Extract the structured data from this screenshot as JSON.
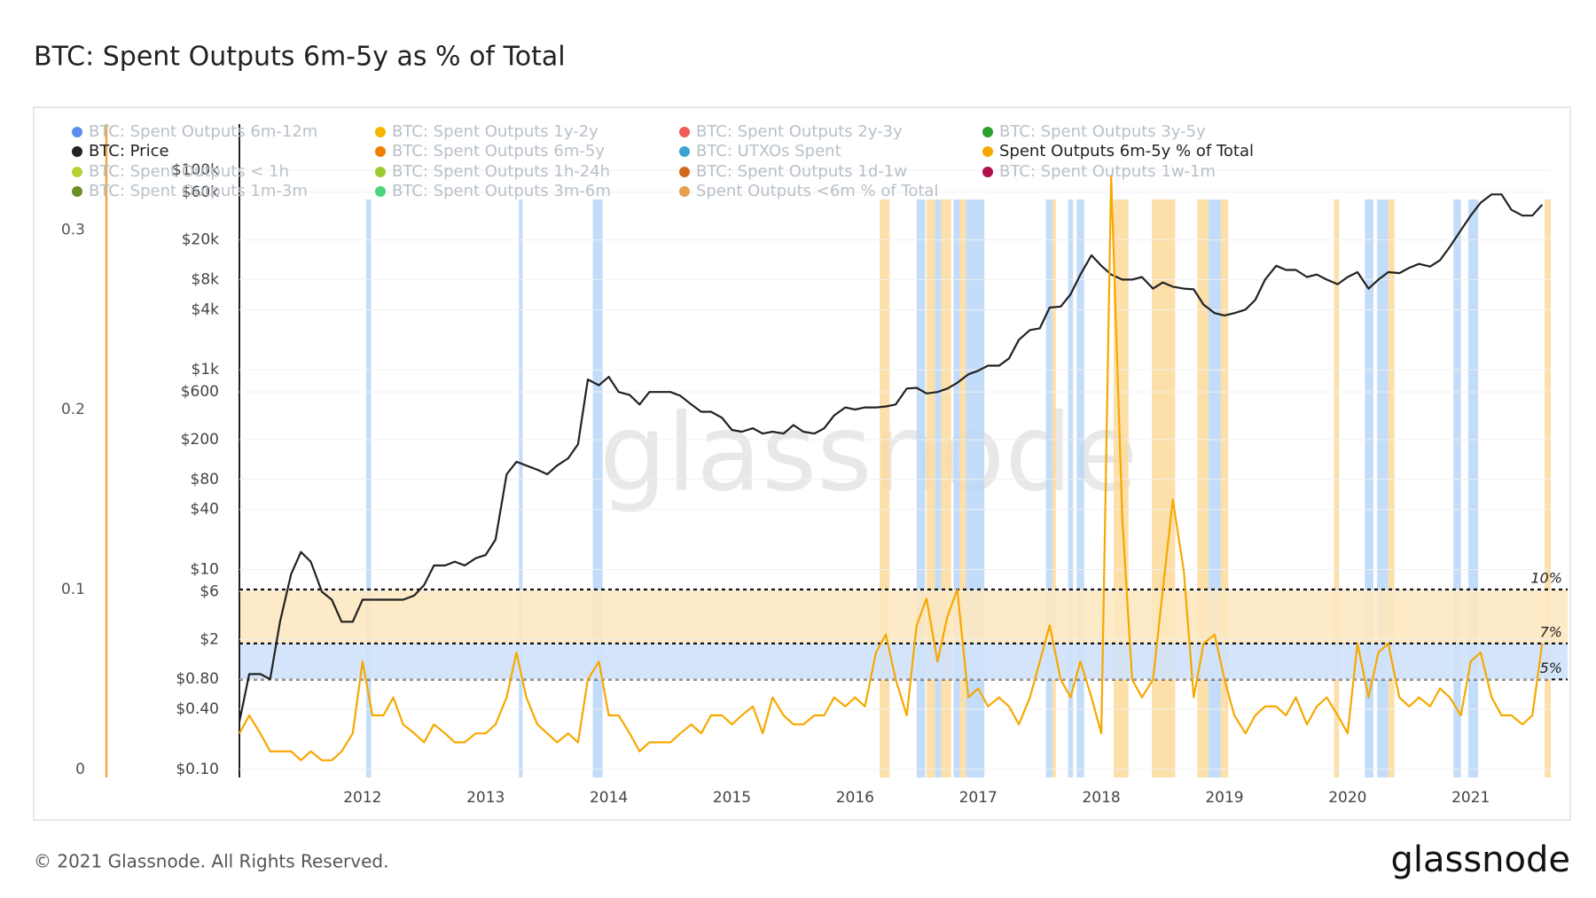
{
  "chart_data": {
    "type": "line",
    "title": "BTC: Spent Outputs 6m-5y as % of Total",
    "watermark": "glassnode",
    "footer": "© 2021 Glassnode. All Rights Reserved.",
    "logo": "glassnode",
    "xlim": [
      2011,
      2021.65
    ],
    "xticks": [
      2012,
      2013,
      2014,
      2015,
      2016,
      2017,
      2018,
      2019,
      2020,
      2021
    ],
    "ylim": [
      -0.0045,
      0.348
    ],
    "yticks": [
      0,
      0.1,
      0.2,
      0.3
    ],
    "y2lim": [
      0.083,
      184000
    ],
    "y2log": true,
    "y2ticks": [
      {
        "value": 100000,
        "label": "$100k"
      },
      {
        "value": 60000,
        "label": "$60k"
      },
      {
        "value": 20000,
        "label": "$20k"
      },
      {
        "value": 8000,
        "label": "$8k"
      },
      {
        "value": 4000,
        "label": "$4k"
      },
      {
        "value": 1000,
        "label": "$1k"
      },
      {
        "value": 600,
        "label": "$600"
      },
      {
        "value": 200,
        "label": "$200"
      },
      {
        "value": 80,
        "label": "$80"
      },
      {
        "value": 40,
        "label": "$40"
      },
      {
        "value": 10,
        "label": "$10"
      },
      {
        "value": 6,
        "label": "$6"
      },
      {
        "value": 2,
        "label": "$2"
      },
      {
        "value": 0.8,
        "label": "$0.80"
      },
      {
        "value": 0.4,
        "label": "$0.40"
      },
      {
        "value": 0.1,
        "label": "$0.10"
      }
    ],
    "zones": [
      {
        "value": 0.1,
        "label": "10%"
      },
      {
        "value": 0.07,
        "label": "7%"
      },
      {
        "value": 0.05,
        "label": "5%"
      }
    ],
    "zone_colors": [
      "#fde8c0",
      "#cfe2fb"
    ],
    "bands": [
      {
        "range": [
          2012.03,
          2012.07
        ],
        "color": "#b9d6f8"
      },
      {
        "range": [
          2013.27,
          2013.3
        ],
        "color": "#b9d6f8"
      },
      {
        "range": [
          2013.87,
          2013.95
        ],
        "color": "#b9d6f8"
      },
      {
        "range": [
          2016.2,
          2016.28
        ],
        "color": "#fcd99a"
      },
      {
        "range": [
          2016.5,
          2016.57
        ],
        "color": "#b9d6f8"
      },
      {
        "range": [
          2016.58,
          2016.65
        ],
        "color": "#fcd99a"
      },
      {
        "range": [
          2016.65,
          2016.7
        ],
        "color": "#b9d6f8"
      },
      {
        "range": [
          2016.7,
          2016.78
        ],
        "color": "#fcd99a"
      },
      {
        "range": [
          2016.8,
          2016.85
        ],
        "color": "#b9d6f8"
      },
      {
        "range": [
          2016.85,
          2016.9
        ],
        "color": "#fcd99a"
      },
      {
        "range": [
          2016.9,
          2017.05
        ],
        "color": "#b9d6f8"
      },
      {
        "range": [
          2017.55,
          2017.6
        ],
        "color": "#b9d6f8"
      },
      {
        "range": [
          2017.6,
          2017.63
        ],
        "color": "#fcd99a"
      },
      {
        "range": [
          2017.73,
          2017.77
        ],
        "color": "#b9d6f8"
      },
      {
        "range": [
          2017.8,
          2017.86
        ],
        "color": "#b9d6f8"
      },
      {
        "range": [
          2018.1,
          2018.22
        ],
        "color": "#fcd99a"
      },
      {
        "range": [
          2018.41,
          2018.6
        ],
        "color": "#fcd99a"
      },
      {
        "range": [
          2018.78,
          2018.87
        ],
        "color": "#fcd99a"
      },
      {
        "range": [
          2018.87,
          2018.97
        ],
        "color": "#b9d6f8"
      },
      {
        "range": [
          2018.97,
          2019.03
        ],
        "color": "#fcd99a"
      },
      {
        "range": [
          2019.89,
          2019.93
        ],
        "color": "#fcd99a"
      },
      {
        "range": [
          2020.14,
          2020.21
        ],
        "color": "#b9d6f8"
      },
      {
        "range": [
          2020.24,
          2020.33
        ],
        "color": "#b9d6f8"
      },
      {
        "range": [
          2020.33,
          2020.38
        ],
        "color": "#fcd99a"
      },
      {
        "range": [
          2020.86,
          2020.92
        ],
        "color": "#b9d6f8"
      },
      {
        "range": [
          2020.98,
          2021.06
        ],
        "color": "#b9d6f8"
      },
      {
        "range": [
          2021.6,
          2021.65
        ],
        "color": "#fcd99a"
      }
    ],
    "x": [
      2011,
      2011.08,
      2011.17,
      2011.25,
      2011.33,
      2011.42,
      2011.5,
      2011.58,
      2011.67,
      2011.75,
      2011.83,
      2011.92,
      2012,
      2012.08,
      2012.17,
      2012.25,
      2012.33,
      2012.42,
      2012.5,
      2012.58,
      2012.67,
      2012.75,
      2012.83,
      2012.92,
      2013,
      2013.08,
      2013.17,
      2013.25,
      2013.33,
      2013.42,
      2013.5,
      2013.58,
      2013.67,
      2013.75,
      2013.83,
      2013.92,
      2014,
      2014.08,
      2014.17,
      2014.25,
      2014.33,
      2014.42,
      2014.5,
      2014.58,
      2014.67,
      2014.75,
      2014.83,
      2014.92,
      2015,
      2015.08,
      2015.17,
      2015.25,
      2015.33,
      2015.42,
      2015.5,
      2015.58,
      2015.67,
      2015.75,
      2015.83,
      2015.92,
      2016,
      2016.08,
      2016.17,
      2016.25,
      2016.33,
      2016.42,
      2016.5,
      2016.58,
      2016.67,
      2016.75,
      2016.83,
      2016.92,
      2017,
      2017.08,
      2017.17,
      2017.25,
      2017.33,
      2017.42,
      2017.5,
      2017.58,
      2017.67,
      2017.75,
      2017.83,
      2017.92,
      2018,
      2018.08,
      2018.17,
      2018.25,
      2018.33,
      2018.42,
      2018.5,
      2018.58,
      2018.67,
      2018.75,
      2018.83,
      2018.92,
      2019,
      2019.08,
      2019.17,
      2019.25,
      2019.33,
      2019.42,
      2019.5,
      2019.58,
      2019.67,
      2019.75,
      2019.83,
      2019.92,
      2020,
      2020.08,
      2020.17,
      2020.25,
      2020.33,
      2020.42,
      2020.5,
      2020.58,
      2020.67,
      2020.75,
      2020.83,
      2020.92,
      2021,
      2021.08,
      2021.17,
      2021.25,
      2021.33,
      2021.42,
      2021.5,
      2021.58
    ],
    "series": [
      {
        "name": "BTC: Spent Outputs 6m-12m",
        "color": "#5b8def",
        "visible": false
      },
      {
        "name": "BTC: Spent Outputs 1y-2y",
        "color": "#f7b500",
        "visible": false
      },
      {
        "name": "BTC: Spent Outputs 2y-3y",
        "color": "#ef5a5a",
        "visible": false
      },
      {
        "name": "BTC: Spent Outputs 3y-5y",
        "color": "#2ca02c",
        "visible": false
      },
      {
        "name": "BTC: Price",
        "color": "#222222",
        "visible": true,
        "axis": "y2",
        "values": [
          0.3,
          0.9,
          0.9,
          0.8,
          3,
          9,
          15,
          12,
          6,
          5,
          3,
          3,
          5,
          5,
          5,
          5,
          5,
          5.5,
          7,
          11,
          11,
          12,
          11,
          13,
          14,
          20,
          90,
          120,
          110,
          100,
          90,
          110,
          130,
          180,
          800,
          700,
          850,
          600,
          560,
          450,
          600,
          600,
          600,
          550,
          450,
          380,
          380,
          330,
          250,
          240,
          260,
          230,
          240,
          230,
          280,
          240,
          230,
          260,
          350,
          420,
          400,
          420,
          420,
          430,
          450,
          650,
          660,
          580,
          600,
          650,
          740,
          900,
          980,
          1100,
          1100,
          1300,
          2000,
          2500,
          2600,
          4200,
          4300,
          5700,
          9000,
          14000,
          11000,
          9000,
          8000,
          8000,
          8500,
          6500,
          7500,
          6800,
          6500,
          6400,
          4500,
          3700,
          3500,
          3700,
          4000,
          5000,
          8000,
          11000,
          10000,
          10000,
          8500,
          9000,
          8000,
          7200,
          8500,
          9500,
          6500,
          8000,
          9500,
          9300,
          10500,
          11500,
          10800,
          12500,
          17000,
          25000,
          35000,
          47000,
          57000,
          57000,
          40000,
          35000,
          35000,
          45000
        ]
      },
      {
        "name": "BTC: Spent Outputs 6m-5y",
        "color": "#f07f00",
        "visible": false
      },
      {
        "name": "BTC: UTXOs Spent",
        "color": "#3ba3d0",
        "visible": false
      },
      {
        "name": "Spent Outputs 6m-5y % of Total",
        "color": "#f7a800",
        "visible": true,
        "values": [
          0.02,
          0.03,
          0.02,
          0.01,
          0.01,
          0.01,
          0.005,
          0.01,
          0.005,
          0.005,
          0.01,
          0.02,
          0.06,
          0.03,
          0.03,
          0.04,
          0.025,
          0.02,
          0.015,
          0.025,
          0.02,
          0.015,
          0.015,
          0.02,
          0.02,
          0.025,
          0.04,
          0.065,
          0.04,
          0.025,
          0.02,
          0.015,
          0.02,
          0.015,
          0.05,
          0.06,
          0.03,
          0.03,
          0.02,
          0.01,
          0.015,
          0.015,
          0.015,
          0.02,
          0.025,
          0.02,
          0.03,
          0.03,
          0.025,
          0.03,
          0.035,
          0.02,
          0.04,
          0.03,
          0.025,
          0.025,
          0.03,
          0.03,
          0.04,
          0.035,
          0.04,
          0.035,
          0.065,
          0.075,
          0.05,
          0.03,
          0.08,
          0.095,
          0.06,
          0.085,
          0.1,
          0.04,
          0.045,
          0.035,
          0.04,
          0.035,
          0.025,
          0.04,
          0.06,
          0.08,
          0.05,
          0.04,
          0.06,
          0.04,
          0.02,
          0.33,
          0.14,
          0.05,
          0.04,
          0.05,
          0.1,
          0.15,
          0.11,
          0.04,
          0.07,
          0.075,
          0.05,
          0.03,
          0.02,
          0.03,
          0.035,
          0.035,
          0.03,
          0.04,
          0.025,
          0.035,
          0.04,
          0.03,
          0.02,
          0.07,
          0.04,
          0.065,
          0.07,
          0.04,
          0.035,
          0.04,
          0.035,
          0.045,
          0.04,
          0.03,
          0.06,
          0.065,
          0.04,
          0.03,
          0.03,
          0.025,
          0.03,
          0.07
        ]
      },
      {
        "name": "BTC: Spent Outputs < 1h",
        "color": "#b5d334",
        "visible": false
      },
      {
        "name": "BTC: Spent Outputs 1h-24h",
        "color": "#9acd32",
        "visible": false
      },
      {
        "name": "BTC: Spent Outputs 1d-1w",
        "color": "#d2691e",
        "visible": false
      },
      {
        "name": "BTC: Spent Outputs 1w-1m",
        "color": "#b0104a",
        "visible": false
      },
      {
        "name": "BTC: Spent Outputs 1m-3m",
        "color": "#6b8e23",
        "visible": false
      },
      {
        "name": "BTC: Spent Outputs 3m-6m",
        "color": "#4cd47a",
        "visible": false
      },
      {
        "name": "Spent Outputs <6m % of Total",
        "color": "#e8a04e",
        "visible": false
      }
    ]
  }
}
